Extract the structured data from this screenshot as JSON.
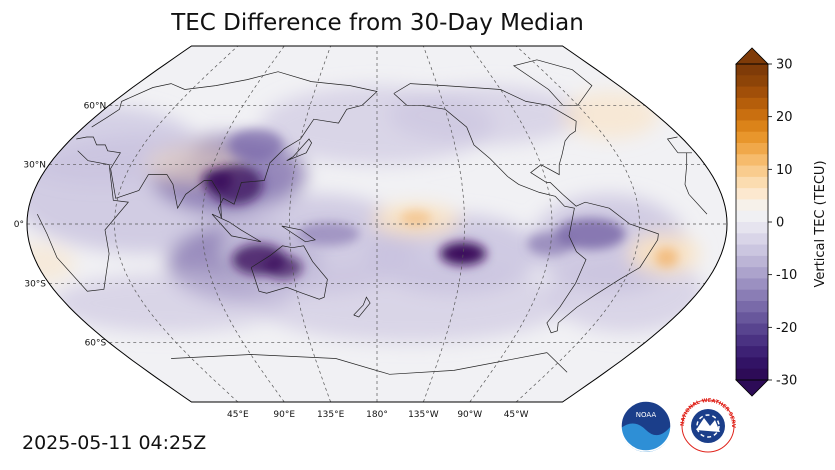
{
  "title": "TEC Difference from 30-Day Median",
  "timestamp": "2025-05-11 04:25Z",
  "map": {
    "projection": "Robinson, centered 180°",
    "lat_labels": [
      "60°N",
      "30°N",
      "0°",
      "30°S",
      "60°S"
    ],
    "lon_labels": [
      "45°E",
      "90°E",
      "135°E",
      "180°",
      "135°W",
      "90°W",
      "45°W"
    ],
    "field_description": "TEC difference field",
    "palette": {
      "neg_strong": "#3b0f5c",
      "neg_mid": "#7b6aa9",
      "neg_light": "#c9c3df",
      "neutral": "#f2f2f4",
      "pos_light": "#fbe3c2",
      "pos_mid": "#f0a24a",
      "pos_strong": "#7f3b08"
    }
  },
  "colorbar": {
    "label": "Vertical TEC (TECU)",
    "min": -30,
    "max": 30,
    "ticks": [
      "30",
      "20",
      "10",
      "0",
      "-10",
      "-20",
      "-30"
    ],
    "colors_top_to_bottom": [
      "#7f3b08",
      "#8d4408",
      "#a14f09",
      "#b55e0b",
      "#c96f10",
      "#db8319",
      "#e8962c",
      "#f0a84a",
      "#f6bb6c",
      "#f9cc8e",
      "#fbdcb0",
      "#fce8cf",
      "#f6f1ea",
      "#f0f0f3",
      "#e6e4ef",
      "#d9d5e8",
      "#cbc6e0",
      "#bcb5d6",
      "#aca3cc",
      "#9b90c1",
      "#8a7db5",
      "#796aa9",
      "#68579c",
      "#58448f",
      "#4a3282",
      "#3d2174",
      "#321365",
      "#2d0b57"
    ],
    "arrows": [
      "max-extend",
      "min-extend"
    ]
  },
  "logos": {
    "noaa": {
      "text": "NOAA",
      "color": "#1b3e8a",
      "accent": "#2e8fd6"
    },
    "nws": {
      "text": "NATIONAL WEATHER SERVICE",
      "color": "#e0241c",
      "accent": "#1b3e8a"
    }
  }
}
